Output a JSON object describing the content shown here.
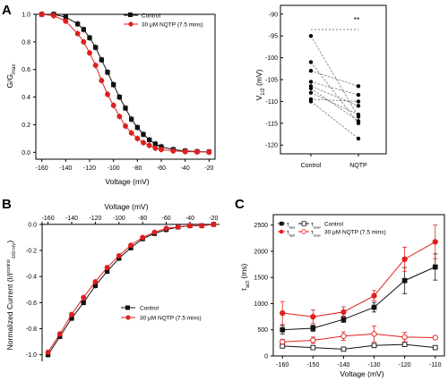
{
  "colors": {
    "control": "#111111",
    "nqtp": "#e01e1e",
    "paired": "#777777"
  },
  "chart_data": [
    {
      "panel": "A",
      "type": "line",
      "xlabel": "Voltage (mV)",
      "ylabel": "G/G_max",
      "xlim": [
        -165,
        -15
      ],
      "ylim": [
        -0.05,
        1.0
      ],
      "xticks": [
        -160,
        -140,
        -120,
        -100,
        -80,
        -60,
        -40,
        -20
      ],
      "yticks": [
        0.0,
        0.2,
        0.4,
        0.6,
        0.8,
        1.0
      ],
      "legend": "top-right",
      "series": [
        {
          "name": "Control",
          "color_key": "control",
          "marker": "square",
          "x": [
            -160,
            -150,
            -140,
            -130,
            -125,
            -120,
            -115,
            -110,
            -105,
            -100,
            -95,
            -90,
            -85,
            -80,
            -75,
            -70,
            -65,
            -60,
            -50,
            -40,
            -30,
            -20
          ],
          "y": [
            1.0,
            1.0,
            0.98,
            0.93,
            0.89,
            0.83,
            0.76,
            0.67,
            0.58,
            0.49,
            0.4,
            0.32,
            0.24,
            0.18,
            0.13,
            0.09,
            0.06,
            0.04,
            0.02,
            0.01,
            0.005,
            0.003
          ]
        },
        {
          "name": "30 μM NQTP (7.5 mins)",
          "color_key": "nqtp",
          "marker": "circle",
          "x": [
            -160,
            -150,
            -140,
            -130,
            -125,
            -120,
            -115,
            -110,
            -105,
            -100,
            -95,
            -90,
            -85,
            -80,
            -75,
            -70,
            -65,
            -60,
            -50,
            -40,
            -30,
            -20
          ],
          "y": [
            1.0,
            0.99,
            0.95,
            0.86,
            0.8,
            0.72,
            0.63,
            0.52,
            0.42,
            0.34,
            0.26,
            0.19,
            0.14,
            0.1,
            0.07,
            0.05,
            0.03,
            0.02,
            0.01,
            0.005,
            0.003,
            0.002
          ]
        }
      ]
    },
    {
      "panel": "A-inset",
      "type": "scatter",
      "ylabel": "V_1/2 (mV)",
      "categories": [
        "Control",
        "NQTP"
      ],
      "ylim": [
        -122,
        -88
      ],
      "yticks": [
        -90,
        -95,
        -100,
        -105,
        -110,
        -115,
        -120
      ],
      "significance": "**",
      "pairs": [
        [
          -95.0,
          -113.5
        ],
        [
          -101.0,
          -115.0
        ],
        [
          -103.0,
          -106.5
        ],
        [
          -105.5,
          -108.5
        ],
        [
          -106.5,
          -111.0
        ],
        [
          -107.0,
          -114.5
        ],
        [
          -108.0,
          -113.0
        ],
        [
          -109.5,
          -110.0
        ],
        [
          -110.0,
          -118.5
        ]
      ]
    },
    {
      "panel": "B",
      "type": "line",
      "xlabel": "Voltage (mV)",
      "ylabel": "Normalized Current (I/I^control_-160 mV)",
      "xlim": [
        -165,
        -15
      ],
      "ylim": [
        -1.05,
        0.02
      ],
      "xticks": [
        -160,
        -140,
        -120,
        -100,
        -80,
        -60,
        -40,
        -20
      ],
      "yticks": [
        0.0,
        -0.2,
        -0.4,
        -0.6,
        -0.8,
        -1.0
      ],
      "legend": "bottom-right",
      "series": [
        {
          "name": "Control",
          "color_key": "control",
          "marker": "square",
          "x": [
            -160,
            -150,
            -140,
            -130,
            -120,
            -110,
            -100,
            -90,
            -80,
            -70,
            -60,
            -50,
            -40,
            -30,
            -20
          ],
          "y": [
            -1.0,
            -0.86,
            -0.72,
            -0.6,
            -0.47,
            -0.36,
            -0.26,
            -0.18,
            -0.11,
            -0.07,
            -0.04,
            -0.02,
            -0.01,
            -0.01,
            0.0
          ]
        },
        {
          "name": "30 μM NQTP (7.5 mins)",
          "color_key": "nqtp",
          "marker": "circle",
          "x": [
            -160,
            -150,
            -140,
            -130,
            -120,
            -110,
            -100,
            -90,
            -80,
            -70,
            -60,
            -50,
            -40,
            -30,
            -20
          ],
          "y": [
            -0.98,
            -0.84,
            -0.69,
            -0.56,
            -0.44,
            -0.33,
            -0.24,
            -0.16,
            -0.1,
            -0.06,
            -0.03,
            -0.02,
            -0.01,
            -0.01,
            0.0
          ]
        }
      ]
    },
    {
      "panel": "C",
      "type": "line",
      "xlabel": "Voltage (mV)",
      "ylabel": "τ_act (ms)",
      "xlim": [
        -163,
        -107
      ],
      "ylim": [
        0,
        2700
      ],
      "xticks": [
        -160,
        -150,
        -140,
        -130,
        -120,
        -110
      ],
      "yticks": [
        0,
        500,
        1000,
        1500,
        2000,
        2500
      ],
      "legend": "top-left",
      "legend_rows": [
        {
          "fast_label": "τ_fast",
          "slow_label": "τ_slow",
          "text": "Control",
          "color_key": "control"
        },
        {
          "fast_label": "τ_fast",
          "slow_label": "τ_slow",
          "text": "30 μM NQTP (7.5 mins)",
          "color_key": "nqtp"
        }
      ],
      "series": [
        {
          "name": "τ_fast Control",
          "color_key": "control",
          "marker": "square",
          "filled": true,
          "x": [
            -160,
            -150,
            -140,
            -130,
            -120,
            -110
          ],
          "y": [
            500,
            530,
            700,
            930,
            1440,
            1700
          ],
          "err": [
            80,
            60,
            60,
            90,
            250,
            250
          ]
        },
        {
          "name": "τ_slow Control",
          "color_key": "control",
          "marker": "square",
          "filled": false,
          "x": [
            -160,
            -150,
            -140,
            -130,
            -120,
            -110
          ],
          "y": [
            190,
            160,
            130,
            200,
            220,
            160
          ],
          "err": [
            30,
            30,
            20,
            40,
            40,
            30
          ]
        },
        {
          "name": "τ_fast 30 μM NQTP (7.5 mins)",
          "color_key": "nqtp",
          "marker": "circle",
          "filled": true,
          "x": [
            -160,
            -150,
            -140,
            -130,
            -120,
            -110
          ],
          "y": [
            820,
            750,
            840,
            1150,
            1850,
            2180
          ],
          "err": [
            220,
            130,
            100,
            100,
            230,
            320
          ]
        },
        {
          "name": "τ_slow 30 μM NQTP (7.5 mins)",
          "color_key": "nqtp",
          "marker": "circle",
          "filled": false,
          "x": [
            -160,
            -150,
            -140,
            -130,
            -120,
            -110
          ],
          "y": [
            270,
            300,
            380,
            420,
            360,
            350
          ],
          "err": [
            50,
            60,
            80,
            150,
            90,
            30
          ]
        }
      ]
    }
  ]
}
